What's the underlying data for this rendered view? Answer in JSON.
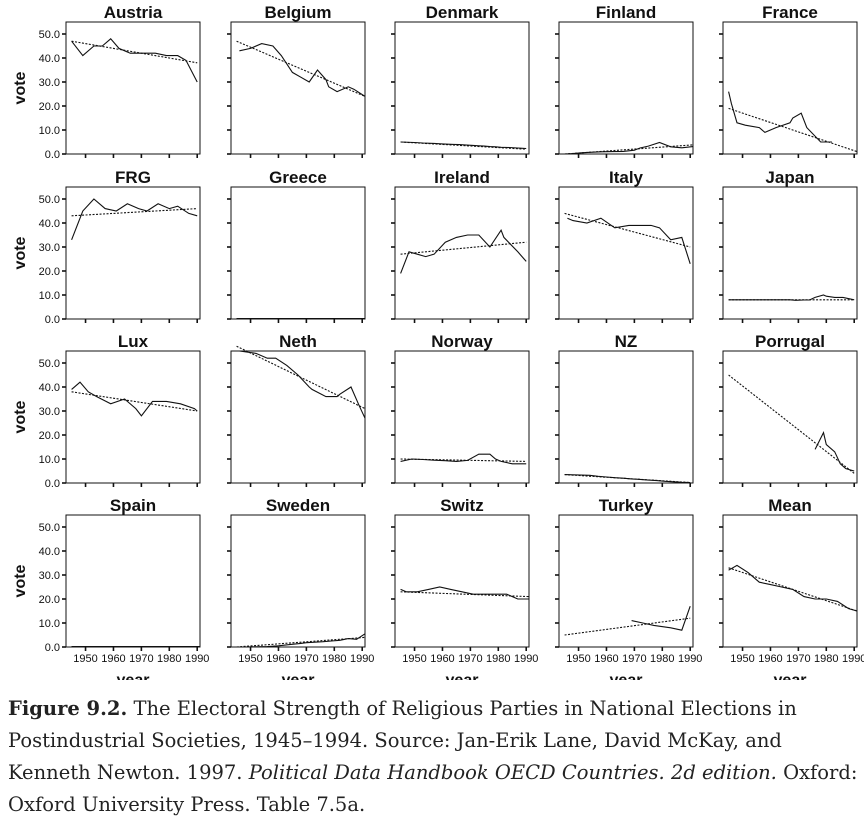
{
  "chart_data": {
    "type": "line",
    "xlabel": "year",
    "ylabel": "vote",
    "xlim": [
      1943,
      1991
    ],
    "ylim": [
      0,
      55
    ],
    "x_ticks": [
      1950,
      1960,
      1970,
      1980,
      1990
    ],
    "x_tick_labels": [
      "1950",
      "1960",
      "1970",
      "1980",
      "1990"
    ],
    "y_ticks": [
      0,
      10,
      20,
      30,
      40,
      50
    ],
    "y_tick_labels": [
      "0.0",
      "10.0",
      "20.0",
      "30.0",
      "40.0",
      "50.0"
    ],
    "panels": [
      {
        "title": "Austria",
        "fit": [
          [
            1945,
            47
          ],
          [
            1990,
            38
          ]
        ],
        "series": [
          [
            1945,
            47
          ],
          [
            1949,
            41
          ],
          [
            1953,
            45
          ],
          [
            1956,
            45
          ],
          [
            1959,
            48
          ],
          [
            1962,
            44
          ],
          [
            1966,
            42
          ],
          [
            1970,
            42
          ],
          [
            1975,
            42
          ],
          [
            1979,
            41
          ],
          [
            1983,
            41
          ],
          [
            1986,
            39
          ],
          [
            1990,
            30
          ]
        ]
      },
      {
        "title": "Belgium",
        "fit": [
          [
            1945,
            47
          ],
          [
            1991,
            24
          ]
        ],
        "series": [
          [
            1946,
            43
          ],
          [
            1950,
            44
          ],
          [
            1954,
            46
          ],
          [
            1958,
            45
          ],
          [
            1961,
            41
          ],
          [
            1965,
            34
          ],
          [
            1968,
            32
          ],
          [
            1971,
            30
          ],
          [
            1974,
            35
          ],
          [
            1977,
            31
          ],
          [
            1978,
            28
          ],
          [
            1981,
            26
          ],
          [
            1985,
            28
          ],
          [
            1987,
            27
          ],
          [
            1991,
            24
          ]
        ]
      },
      {
        "title": "Denmark",
        "fit": [
          [
            1945,
            5
          ],
          [
            1990,
            2
          ]
        ],
        "series": [
          [
            1945,
            5
          ],
          [
            1950,
            4.8
          ],
          [
            1953,
            4.6
          ],
          [
            1957,
            4.4
          ],
          [
            1960,
            4.2
          ],
          [
            1964,
            4.0
          ],
          [
            1966,
            3.9
          ],
          [
            1968,
            3.8
          ],
          [
            1971,
            3.6
          ],
          [
            1973,
            3.4
          ],
          [
            1975,
            3.3
          ],
          [
            1977,
            3.1
          ],
          [
            1979,
            3.0
          ],
          [
            1981,
            2.8
          ],
          [
            1984,
            2.7
          ],
          [
            1987,
            2.5
          ],
          [
            1988,
            2.4
          ],
          [
            1990,
            2.3
          ]
        ]
      },
      {
        "title": "Finland",
        "fit": [
          [
            1945,
            0
          ],
          [
            1991,
            3.8
          ]
        ],
        "series": [
          [
            1945,
            0
          ],
          [
            1948,
            0.2
          ],
          [
            1951,
            0.5
          ],
          [
            1954,
            0.7
          ],
          [
            1958,
            0.9
          ],
          [
            1962,
            1.0
          ],
          [
            1966,
            1.1
          ],
          [
            1970,
            1.6
          ],
          [
            1972,
            2.5
          ],
          [
            1975,
            3.3
          ],
          [
            1979,
            4.8
          ],
          [
            1983,
            3.0
          ],
          [
            1987,
            2.6
          ],
          [
            1991,
            3.1
          ]
        ]
      },
      {
        "title": "France",
        "fit": [
          [
            1945,
            19
          ],
          [
            1991,
            1
          ]
        ],
        "series": [
          [
            1945,
            26
          ],
          [
            1946,
            21
          ],
          [
            1947,
            17
          ],
          [
            1948,
            13
          ],
          [
            1951,
            12
          ],
          [
            1956,
            11
          ],
          [
            1958,
            9
          ],
          [
            1962,
            11
          ],
          [
            1967,
            13
          ],
          [
            1968,
            15
          ],
          [
            1971,
            17
          ],
          [
            1973,
            11
          ],
          [
            1978,
            5
          ],
          [
            1981,
            5
          ],
          [
            1982,
            5
          ]
        ]
      },
      {
        "title": "FRG",
        "fit": [
          [
            1945,
            43
          ],
          [
            1990,
            46
          ]
        ],
        "series": [
          [
            1945,
            33
          ],
          [
            1949,
            45
          ],
          [
            1953,
            50
          ],
          [
            1957,
            46
          ],
          [
            1961,
            45
          ],
          [
            1965,
            48
          ],
          [
            1969,
            46
          ],
          [
            1972,
            45
          ],
          [
            1976,
            48
          ],
          [
            1980,
            46
          ],
          [
            1983,
            47
          ],
          [
            1987,
            44
          ],
          [
            1990,
            43
          ]
        ]
      },
      {
        "title": "Greece",
        "fit": [
          [
            1945,
            0.2
          ],
          [
            1991,
            0.2
          ]
        ],
        "series": [
          [
            1945,
            0.2
          ],
          [
            1991,
            0.2
          ]
        ]
      },
      {
        "title": "Ireland",
        "fit": [
          [
            1945,
            27
          ],
          [
            1990,
            32
          ]
        ],
        "series": [
          [
            1945,
            19
          ],
          [
            1948,
            28
          ],
          [
            1951,
            27
          ],
          [
            1954,
            26
          ],
          [
            1957,
            27
          ],
          [
            1961,
            32
          ],
          [
            1965,
            34
          ],
          [
            1969,
            35
          ],
          [
            1973,
            35
          ],
          [
            1977,
            30
          ],
          [
            1981,
            37
          ],
          [
            1982,
            34
          ],
          [
            1987,
            28
          ],
          [
            1990,
            24
          ]
        ]
      },
      {
        "title": "Italy",
        "fit": [
          [
            1945,
            44
          ],
          [
            1990,
            30
          ]
        ],
        "series": [
          [
            1946,
            42
          ],
          [
            1948,
            41
          ],
          [
            1953,
            40
          ],
          [
            1958,
            42
          ],
          [
            1963,
            38
          ],
          [
            1968,
            39
          ],
          [
            1972,
            39
          ],
          [
            1976,
            39
          ],
          [
            1979,
            38
          ],
          [
            1983,
            33
          ],
          [
            1987,
            34
          ],
          [
            1990,
            23
          ]
        ]
      },
      {
        "title": "Japan",
        "fit": [
          [
            1945,
            8
          ],
          [
            1990,
            8
          ]
        ],
        "series": [
          [
            1945,
            8
          ],
          [
            1967,
            8
          ],
          [
            1969,
            7.8
          ],
          [
            1972,
            7.9
          ],
          [
            1974,
            7.9
          ],
          [
            1976,
            9
          ],
          [
            1979,
            10
          ],
          [
            1980,
            9.5
          ],
          [
            1983,
            9
          ],
          [
            1986,
            9
          ],
          [
            1990,
            8
          ]
        ]
      },
      {
        "title": "Lux",
        "fit": [
          [
            1945,
            38
          ],
          [
            1990,
            30
          ]
        ],
        "series": [
          [
            1945,
            39
          ],
          [
            1948,
            42
          ],
          [
            1951,
            38
          ],
          [
            1954,
            36
          ],
          [
            1959,
            33
          ],
          [
            1964,
            35
          ],
          [
            1968,
            31
          ],
          [
            1970,
            28
          ],
          [
            1974,
            34
          ],
          [
            1979,
            34
          ],
          [
            1984,
            33
          ],
          [
            1989,
            31
          ],
          [
            1990,
            30
          ]
        ]
      },
      {
        "title": "Neth",
        "fit": [
          [
            1945,
            57
          ],
          [
            1991,
            31
          ]
        ],
        "series": [
          [
            1946,
            55
          ],
          [
            1952,
            54
          ],
          [
            1956,
            52
          ],
          [
            1959,
            52
          ],
          [
            1963,
            49
          ],
          [
            1967,
            45
          ],
          [
            1971,
            40
          ],
          [
            1972,
            39
          ],
          [
            1977,
            36
          ],
          [
            1981,
            36
          ],
          [
            1982,
            37
          ],
          [
            1986,
            40
          ],
          [
            1989,
            32
          ],
          [
            1991,
            27
          ]
        ]
      },
      {
        "title": "Norway",
        "fit": [
          [
            1945,
            10
          ],
          [
            1990,
            9
          ]
        ],
        "series": [
          [
            1945,
            9
          ],
          [
            1949,
            10
          ],
          [
            1953,
            9.8
          ],
          [
            1957,
            9.5
          ],
          [
            1961,
            9.3
          ],
          [
            1965,
            9
          ],
          [
            1969,
            9.4
          ],
          [
            1973,
            12
          ],
          [
            1977,
            12
          ],
          [
            1979,
            10
          ],
          [
            1981,
            9
          ],
          [
            1985,
            8
          ],
          [
            1989,
            8
          ],
          [
            1990,
            8
          ]
        ]
      },
      {
        "title": "NZ",
        "fit": [
          [
            1945,
            3.5
          ],
          [
            1990,
            0.2
          ]
        ],
        "series": [
          [
            1945,
            3.5
          ],
          [
            1954,
            3.2
          ],
          [
            1957,
            2.8
          ],
          [
            1960,
            2.5
          ],
          [
            1963,
            2.2
          ],
          [
            1966,
            2.0
          ],
          [
            1969,
            1.7
          ],
          [
            1972,
            1.5
          ],
          [
            1975,
            1.2
          ],
          [
            1978,
            1.0
          ],
          [
            1981,
            0.7
          ],
          [
            1984,
            0.5
          ],
          [
            1987,
            0.3
          ],
          [
            1990,
            0.2
          ]
        ]
      },
      {
        "title": "Porrugal",
        "fit": [
          [
            1945,
            45
          ],
          [
            1990,
            4
          ]
        ],
        "series": [
          [
            1976,
            14
          ],
          [
            1979,
            21
          ],
          [
            1980,
            16
          ],
          [
            1983,
            13
          ],
          [
            1985,
            8
          ],
          [
            1987,
            6
          ],
          [
            1990,
            5
          ]
        ]
      },
      {
        "title": "Spain",
        "fit": [
          [
            1945,
            0.2
          ],
          [
            1991,
            0.2
          ]
        ],
        "series": [
          [
            1945,
            0.2
          ],
          [
            1991,
            0.2
          ]
        ]
      },
      {
        "title": "Sweden",
        "fit": [
          [
            1945,
            0
          ],
          [
            1991,
            4
          ]
        ],
        "series": [
          [
            1945,
            0
          ],
          [
            1948,
            0
          ],
          [
            1952,
            0.1
          ],
          [
            1956,
            0.2
          ],
          [
            1960,
            0.5
          ],
          [
            1964,
            1.0
          ],
          [
            1968,
            1.5
          ],
          [
            1970,
            1.8
          ],
          [
            1973,
            2.0
          ],
          [
            1976,
            2.2
          ],
          [
            1979,
            2.5
          ],
          [
            1982,
            2.8
          ],
          [
            1985,
            3.5
          ],
          [
            1988,
            3.2
          ],
          [
            1991,
            5.5
          ]
        ]
      },
      {
        "title": "Switz",
        "fit": [
          [
            1945,
            23
          ],
          [
            1991,
            21
          ]
        ],
        "series": [
          [
            1945,
            24
          ],
          [
            1947,
            23
          ],
          [
            1951,
            23
          ],
          [
            1955,
            24
          ],
          [
            1959,
            25
          ],
          [
            1963,
            24
          ],
          [
            1967,
            23
          ],
          [
            1971,
            22
          ],
          [
            1975,
            22
          ],
          [
            1979,
            22
          ],
          [
            1983,
            22
          ],
          [
            1987,
            20
          ],
          [
            1991,
            20
          ]
        ]
      },
      {
        "title": "Turkey",
        "fit": [
          [
            1945,
            5
          ],
          [
            1990,
            12
          ]
        ],
        "series": [
          [
            1969,
            11
          ],
          [
            1973,
            10
          ],
          [
            1977,
            9
          ],
          [
            1983,
            8
          ],
          [
            1987,
            7
          ],
          [
            1990,
            17
          ]
        ]
      },
      {
        "title": "Mean",
        "fit": [
          [
            1945,
            33
          ],
          [
            1991,
            15
          ]
        ],
        "series": [
          [
            1945,
            32
          ],
          [
            1948,
            34
          ],
          [
            1952,
            31
          ],
          [
            1956,
            27
          ],
          [
            1960,
            26
          ],
          [
            1964,
            25
          ],
          [
            1968,
            24
          ],
          [
            1972,
            21
          ],
          [
            1976,
            20
          ],
          [
            1980,
            20
          ],
          [
            1984,
            19
          ],
          [
            1988,
            16
          ],
          [
            1991,
            15
          ]
        ]
      }
    ]
  },
  "caption": {
    "label": "Figure 9.2.",
    "text_1": " The Electoral Strength of Religious Parties in National Elections in Postindustrial Societies, 1945–1994. Source: Jan-Erik Lane, David McKay, and Kenneth Newton. 1997. ",
    "italic": "Political Data Handbook OECD Countries. 2d edition.",
    "text_2": " Oxford: Oxford University Press. Table 7.5a."
  }
}
